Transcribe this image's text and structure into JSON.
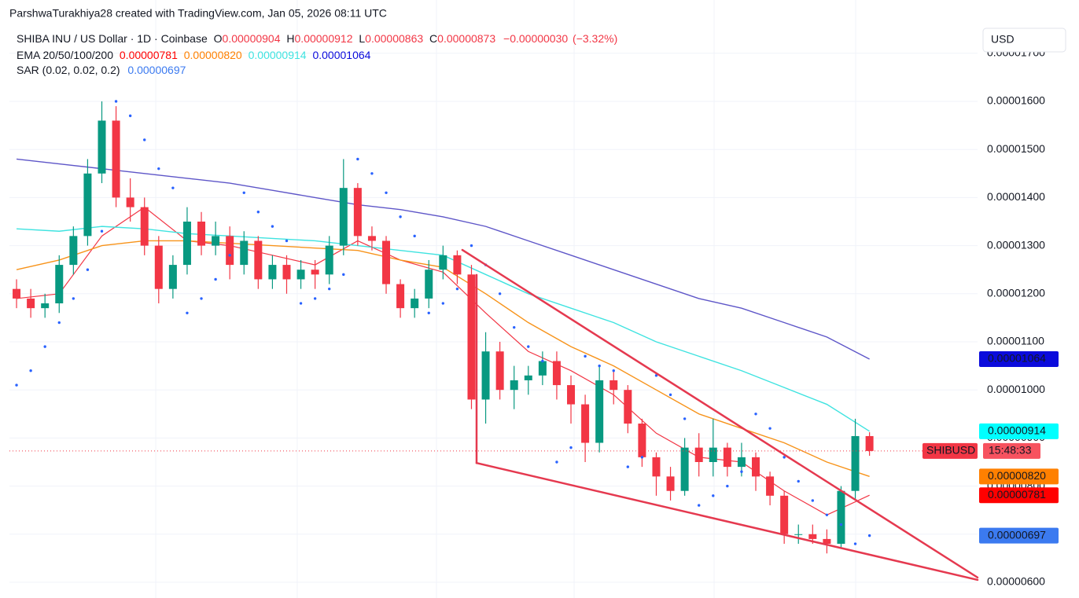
{
  "header": "ParshwaTurakhiya28 created with TradingView.com, Jan 05, 2026 08:11 UTC",
  "currency_button": "USD",
  "chart_data": {
    "type": "candlestick",
    "title": "SHIBA INU / US Dollar · 1D · Coinbase",
    "legend": {
      "open": {
        "name": "O",
        "value": 9.04e-06,
        "label": "0.00000904"
      },
      "high": {
        "name": "H",
        "value": 9.12e-06,
        "label": "0.00000912"
      },
      "low": {
        "name": "L",
        "value": 8.63e-06,
        "label": "0.00000863"
      },
      "close": {
        "name": "C",
        "value": 8.73e-06,
        "label": "0.00000873"
      },
      "change": {
        "value": -3e-07,
        "label": "−0.00000030"
      },
      "change_pct": {
        "value": -3.32,
        "label": "(−3.32%)"
      }
    },
    "symbol": "SHIBUSD",
    "countdown": "15:48:33",
    "up_color": "#089981",
    "down_color": "#f23645",
    "categories": [
      null,
      null,
      null,
      null,
      null,
      null,
      null,
      null,
      null,
      null,
      null,
      null,
      null,
      null,
      null,
      null,
      null,
      null,
      null,
      null,
      null,
      null,
      null,
      null,
      null,
      null,
      null,
      null,
      null,
      null,
      null,
      null,
      null,
      null,
      null,
      null,
      null,
      null,
      null,
      null,
      null,
      null,
      null,
      null,
      null,
      null,
      null,
      null,
      null,
      null,
      null,
      null,
      null,
      null,
      null,
      null,
      null,
      null,
      null,
      null,
      null
    ],
    "open": [
      1.21e-05,
      1.19e-05,
      1.17e-05,
      1.18e-05,
      1.26e-05,
      1.32e-05,
      1.45e-05,
      1.56e-05,
      1.4e-05,
      1.38e-05,
      1.3e-05,
      1.21e-05,
      1.26e-05,
      1.35e-05,
      1.3e-05,
      1.32e-05,
      1.26e-05,
      1.31e-05,
      1.23e-05,
      1.26e-05,
      1.23e-05,
      1.25e-05,
      1.24e-05,
      1.3e-05,
      1.42e-05,
      1.32e-05,
      1.31e-05,
      1.22e-05,
      1.17e-05,
      1.19e-05,
      1.25e-05,
      1.28e-05,
      1.24e-05,
      9.8e-06,
      1.08e-05,
      1e-05,
      1.02e-05,
      1.03e-05,
      1.06e-05,
      1.01e-05,
      9.7e-06,
      8.9e-06,
      1.02e-05,
      1e-05,
      9.3e-06,
      8.6e-06,
      8.2e-06,
      7.9e-06,
      8.8e-06,
      8.5e-06,
      8.8e-06,
      8.4e-06,
      8.6e-06,
      8.2e-06,
      7.8e-06,
      7e-06,
      7e-06,
      6.9e-06,
      6.8e-06,
      7.9e-06,
      9.04e-06
    ],
    "high": [
      1.23e-05,
      1.21e-05,
      1.2e-05,
      1.28e-05,
      1.34e-05,
      1.48e-05,
      1.6e-05,
      1.59e-05,
      1.44e-05,
      1.4e-05,
      1.32e-05,
      1.28e-05,
      1.38e-05,
      1.37e-05,
      1.35e-05,
      1.34e-05,
      1.33e-05,
      1.32e-05,
      1.28e-05,
      1.28e-05,
      1.27e-05,
      1.27e-05,
      1.32e-05,
      1.48e-05,
      1.43e-05,
      1.34e-05,
      1.32e-05,
      1.23e-05,
      1.21e-05,
      1.27e-05,
      1.3e-05,
      1.29e-05,
      1.26e-05,
      1.12e-05,
      1.1e-05,
      1.05e-05,
      1.05e-05,
      1.08e-05,
      1.08e-05,
      1.03e-05,
      9.9e-06,
      1.05e-05,
      1.04e-05,
      1.01e-05,
      9.4e-06,
      8.7e-06,
      8.4e-06,
      9e-06,
      9.1e-06,
      9.4e-06,
      8.9e-06,
      8.9e-06,
      8.7e-06,
      8.3e-06,
      7.9e-06,
      7.2e-06,
      7.2e-06,
      7.1e-06,
      8e-06,
      9.4e-06,
      9.12e-06
    ],
    "low": [
      1.17e-05,
      1.15e-05,
      1.15e-05,
      1.16e-05,
      1.24e-05,
      1.3e-05,
      1.43e-05,
      1.38e-05,
      1.35e-05,
      1.28e-05,
      1.18e-05,
      1.19e-05,
      1.24e-05,
      1.28e-05,
      1.28e-05,
      1.23e-05,
      1.24e-05,
      1.21e-05,
      1.21e-05,
      1.2e-05,
      1.21e-05,
      1.21e-05,
      1.22e-05,
      1.28e-05,
      1.3e-05,
      1.29e-05,
      1.2e-05,
      1.15e-05,
      1.15e-05,
      1.17e-05,
      1.23e-05,
      1.22e-05,
      9.6e-06,
      9.3e-06,
      9.8e-06,
      9.6e-06,
      9.9e-06,
      1.01e-05,
      9.8e-06,
      9.3e-06,
      8.5e-06,
      8.7e-06,
      9.7e-06,
      9.1e-06,
      8.4e-06,
      7.8e-06,
      7.7e-06,
      7.8e-06,
      8.2e-06,
      8.2e-06,
      8.2e-06,
      8.2e-06,
      7.9e-06,
      7.6e-06,
      6.8e-06,
      6.8e-06,
      6.8e-06,
      6.6e-06,
      6.7e-06,
      7.7e-06,
      8.63e-06
    ],
    "close": [
      1.19e-05,
      1.17e-05,
      1.18e-05,
      1.26e-05,
      1.32e-05,
      1.45e-05,
      1.56e-05,
      1.4e-05,
      1.38e-05,
      1.3e-05,
      1.21e-05,
      1.26e-05,
      1.35e-05,
      1.3e-05,
      1.32e-05,
      1.26e-05,
      1.31e-05,
      1.23e-05,
      1.26e-05,
      1.23e-05,
      1.25e-05,
      1.24e-05,
      1.3e-05,
      1.42e-05,
      1.32e-05,
      1.31e-05,
      1.22e-05,
      1.17e-05,
      1.19e-05,
      1.25e-05,
      1.28e-05,
      1.24e-05,
      9.8e-06,
      1.08e-05,
      1e-05,
      1.02e-05,
      1.03e-05,
      1.06e-05,
      1.01e-05,
      9.7e-06,
      8.9e-06,
      1.02e-05,
      1e-05,
      9.3e-06,
      8.6e-06,
      8.2e-06,
      7.9e-06,
      8.8e-06,
      8.5e-06,
      8.8e-06,
      8.4e-06,
      8.6e-06,
      8.2e-06,
      7.8e-06,
      7e-06,
      7e-06,
      6.9e-06,
      6.8e-06,
      7.9e-06,
      9.04e-06,
      8.73e-06
    ],
    "xlim": [
      -0.5,
      67.6
    ],
    "ylim": [
      5.673e-06,
      1.8108e-05
    ],
    "yticks": [
      {
        "value": 6e-06,
        "label": "0.00000600"
      },
      {
        "value": 7e-06,
        "label": "0.00000700"
      },
      {
        "value": 8e-06,
        "label": "0.00000800"
      },
      {
        "value": 9e-06,
        "label": "0.00000900"
      },
      {
        "value": 1e-05,
        "label": "0.00001000"
      },
      {
        "value": 1.1e-05,
        "label": "0.00001100"
      },
      {
        "value": 1.2e-05,
        "label": "0.00001200"
      },
      {
        "value": 1.3e-05,
        "label": "0.00001300"
      },
      {
        "value": 1.4e-05,
        "label": "0.00001400"
      },
      {
        "value": 1.5e-05,
        "label": "0.00001500"
      },
      {
        "value": 1.6e-05,
        "label": "0.00001600"
      },
      {
        "value": 1.7e-05,
        "label": "0.00001700"
      }
    ],
    "grid": true,
    "ema_label": "EMA 20/50/100/200",
    "series": [
      {
        "color": "#f23645",
        "box_color": "#ff0000",
        "box_text_color": "#ffffff",
        "x": [
          0,
          3,
          6,
          9,
          12,
          15,
          18,
          21,
          24,
          27,
          30,
          33,
          36,
          39,
          42,
          45,
          48,
          51,
          54,
          57,
          60
        ],
        "values": [
          1.19e-05,
          1.2e-05,
          1.32e-05,
          1.38e-05,
          1.31e-05,
          1.3e-05,
          1.28e-05,
          1.26e-05,
          1.31e-05,
          1.27e-05,
          1.245e-05,
          1.16e-05,
          1.08e-05,
          1.04e-05,
          9.9e-06,
          9.1e-06,
          8.6e-06,
          8.5e-06,
          7.9e-06,
          7.4e-06,
          7.81e-06
        ],
        "last": {
          "value": 7.81e-06,
          "label": "0.00000781"
        }
      },
      {
        "color": "#f7931a",
        "box_color": "#ff8000",
        "box_text_color": "#ffffff",
        "x": [
          0,
          3,
          6,
          9,
          12,
          15,
          18,
          21,
          24,
          27,
          30,
          33,
          36,
          39,
          42,
          45,
          48,
          51,
          54,
          57,
          60
        ],
        "values": [
          1.25e-05,
          1.27e-05,
          1.3e-05,
          1.31e-05,
          1.31e-05,
          1.305e-05,
          1.3e-05,
          1.295e-05,
          1.29e-05,
          1.27e-05,
          1.255e-05,
          1.2e-05,
          1.14e-05,
          1.09e-05,
          1.05e-05,
          1e-05,
          9.5e-06,
          9.2e-06,
          8.9e-06,
          8.5e-06,
          8.2e-06
        ],
        "last": {
          "value": 8.2e-06,
          "label": "0.00000820"
        }
      },
      {
        "color": "#3fe3e0",
        "box_color": "#00ffff",
        "box_text_color": "#131722",
        "x": [
          0,
          3,
          6,
          9,
          12,
          15,
          18,
          21,
          24,
          27,
          30,
          33,
          36,
          39,
          42,
          45,
          48,
          51,
          54,
          57,
          60
        ],
        "values": [
          1.335e-05,
          1.33e-05,
          1.34e-05,
          1.335e-05,
          1.325e-05,
          1.32e-05,
          1.315e-05,
          1.31e-05,
          1.3e-05,
          1.29e-05,
          1.28e-05,
          1.24e-05,
          1.2e-05,
          1.17e-05,
          1.14e-05,
          1.1e-05,
          1.07e-05,
          1.04e-05,
          1.005e-05,
          9.7e-06,
          9.14e-06
        ],
        "last": {
          "value": 9.14e-06,
          "label": "0.00000914"
        }
      },
      {
        "color": "#5e56c8",
        "box_color": "#0b0bdc",
        "box_text_color": "#ffffff",
        "x": [
          0,
          3,
          6,
          9,
          12,
          15,
          18,
          21,
          24,
          27,
          30,
          33,
          36,
          39,
          42,
          45,
          48,
          51,
          54,
          57,
          60
        ],
        "values": [
          1.48e-05,
          1.47e-05,
          1.46e-05,
          1.45e-05,
          1.44e-05,
          1.43e-05,
          1.415e-05,
          1.4e-05,
          1.385e-05,
          1.375e-05,
          1.36e-05,
          1.34e-05,
          1.31e-05,
          1.28e-05,
          1.25e-05,
          1.22e-05,
          1.19e-05,
          1.17e-05,
          1.14e-05,
          1.11e-05,
          1.064e-05
        ],
        "last": {
          "value": 1.064e-05,
          "label": "0.00001064"
        }
      }
    ],
    "sar": {
      "label": "SAR (0.02, 0.02, 0.2)",
      "color": "#2962ff",
      "box_color": "#3b7af0",
      "values": [
        1.01e-05,
        1.04e-05,
        1.09e-05,
        1.14e-05,
        1.19e-05,
        1.25e-05,
        1.33e-05,
        1.6e-05,
        1.57e-05,
        1.52e-05,
        1.46e-05,
        1.42e-05,
        1.16e-05,
        1.19e-05,
        1.23e-05,
        1.28e-05,
        1.41e-05,
        1.37e-05,
        1.34e-05,
        1.31e-05,
        1.18e-05,
        1.19e-05,
        1.21e-05,
        1.24e-05,
        1.48e-05,
        1.45e-05,
        1.41e-05,
        1.36e-05,
        1.32e-05,
        1.16e-05,
        1.18e-05,
        1.21e-05,
        1.3e-05,
        1.26e-05,
        1.2e-05,
        1.13e-05,
        1.09e-05,
        1.06e-05,
        8.5e-06,
        8.8e-06,
        1.07e-05,
        1.05e-05,
        1.04e-05,
        8.4e-06,
        8.6e-06,
        1.03e-05,
        9.9e-06,
        9.4e-06,
        7.6e-06,
        7.8e-06,
        8e-06,
        8.3e-06,
        9.5e-06,
        9.2e-06,
        8.6e-06,
        8.1e-06,
        7.7e-06,
        7.4e-06,
        7.2e-06,
        6.8e-06,
        6.97e-06
      ],
      "last": {
        "value": 6.97e-06,
        "label": "0.00000697"
      }
    },
    "trendline_color": "#e5394f",
    "trendlines": [
      {
        "x": [
          31.36,
          67.6
        ],
        "values": [
          1.291e-05,
          6.1e-06
        ]
      },
      {
        "x": [
          32.36,
          67.6
        ],
        "values": [
          8.48e-06,
          6.05e-06
        ]
      },
      {
        "x": [
          32.36,
          32.36
        ],
        "values": [
          1.239e-05,
          8.48e-06
        ]
      }
    ]
  }
}
